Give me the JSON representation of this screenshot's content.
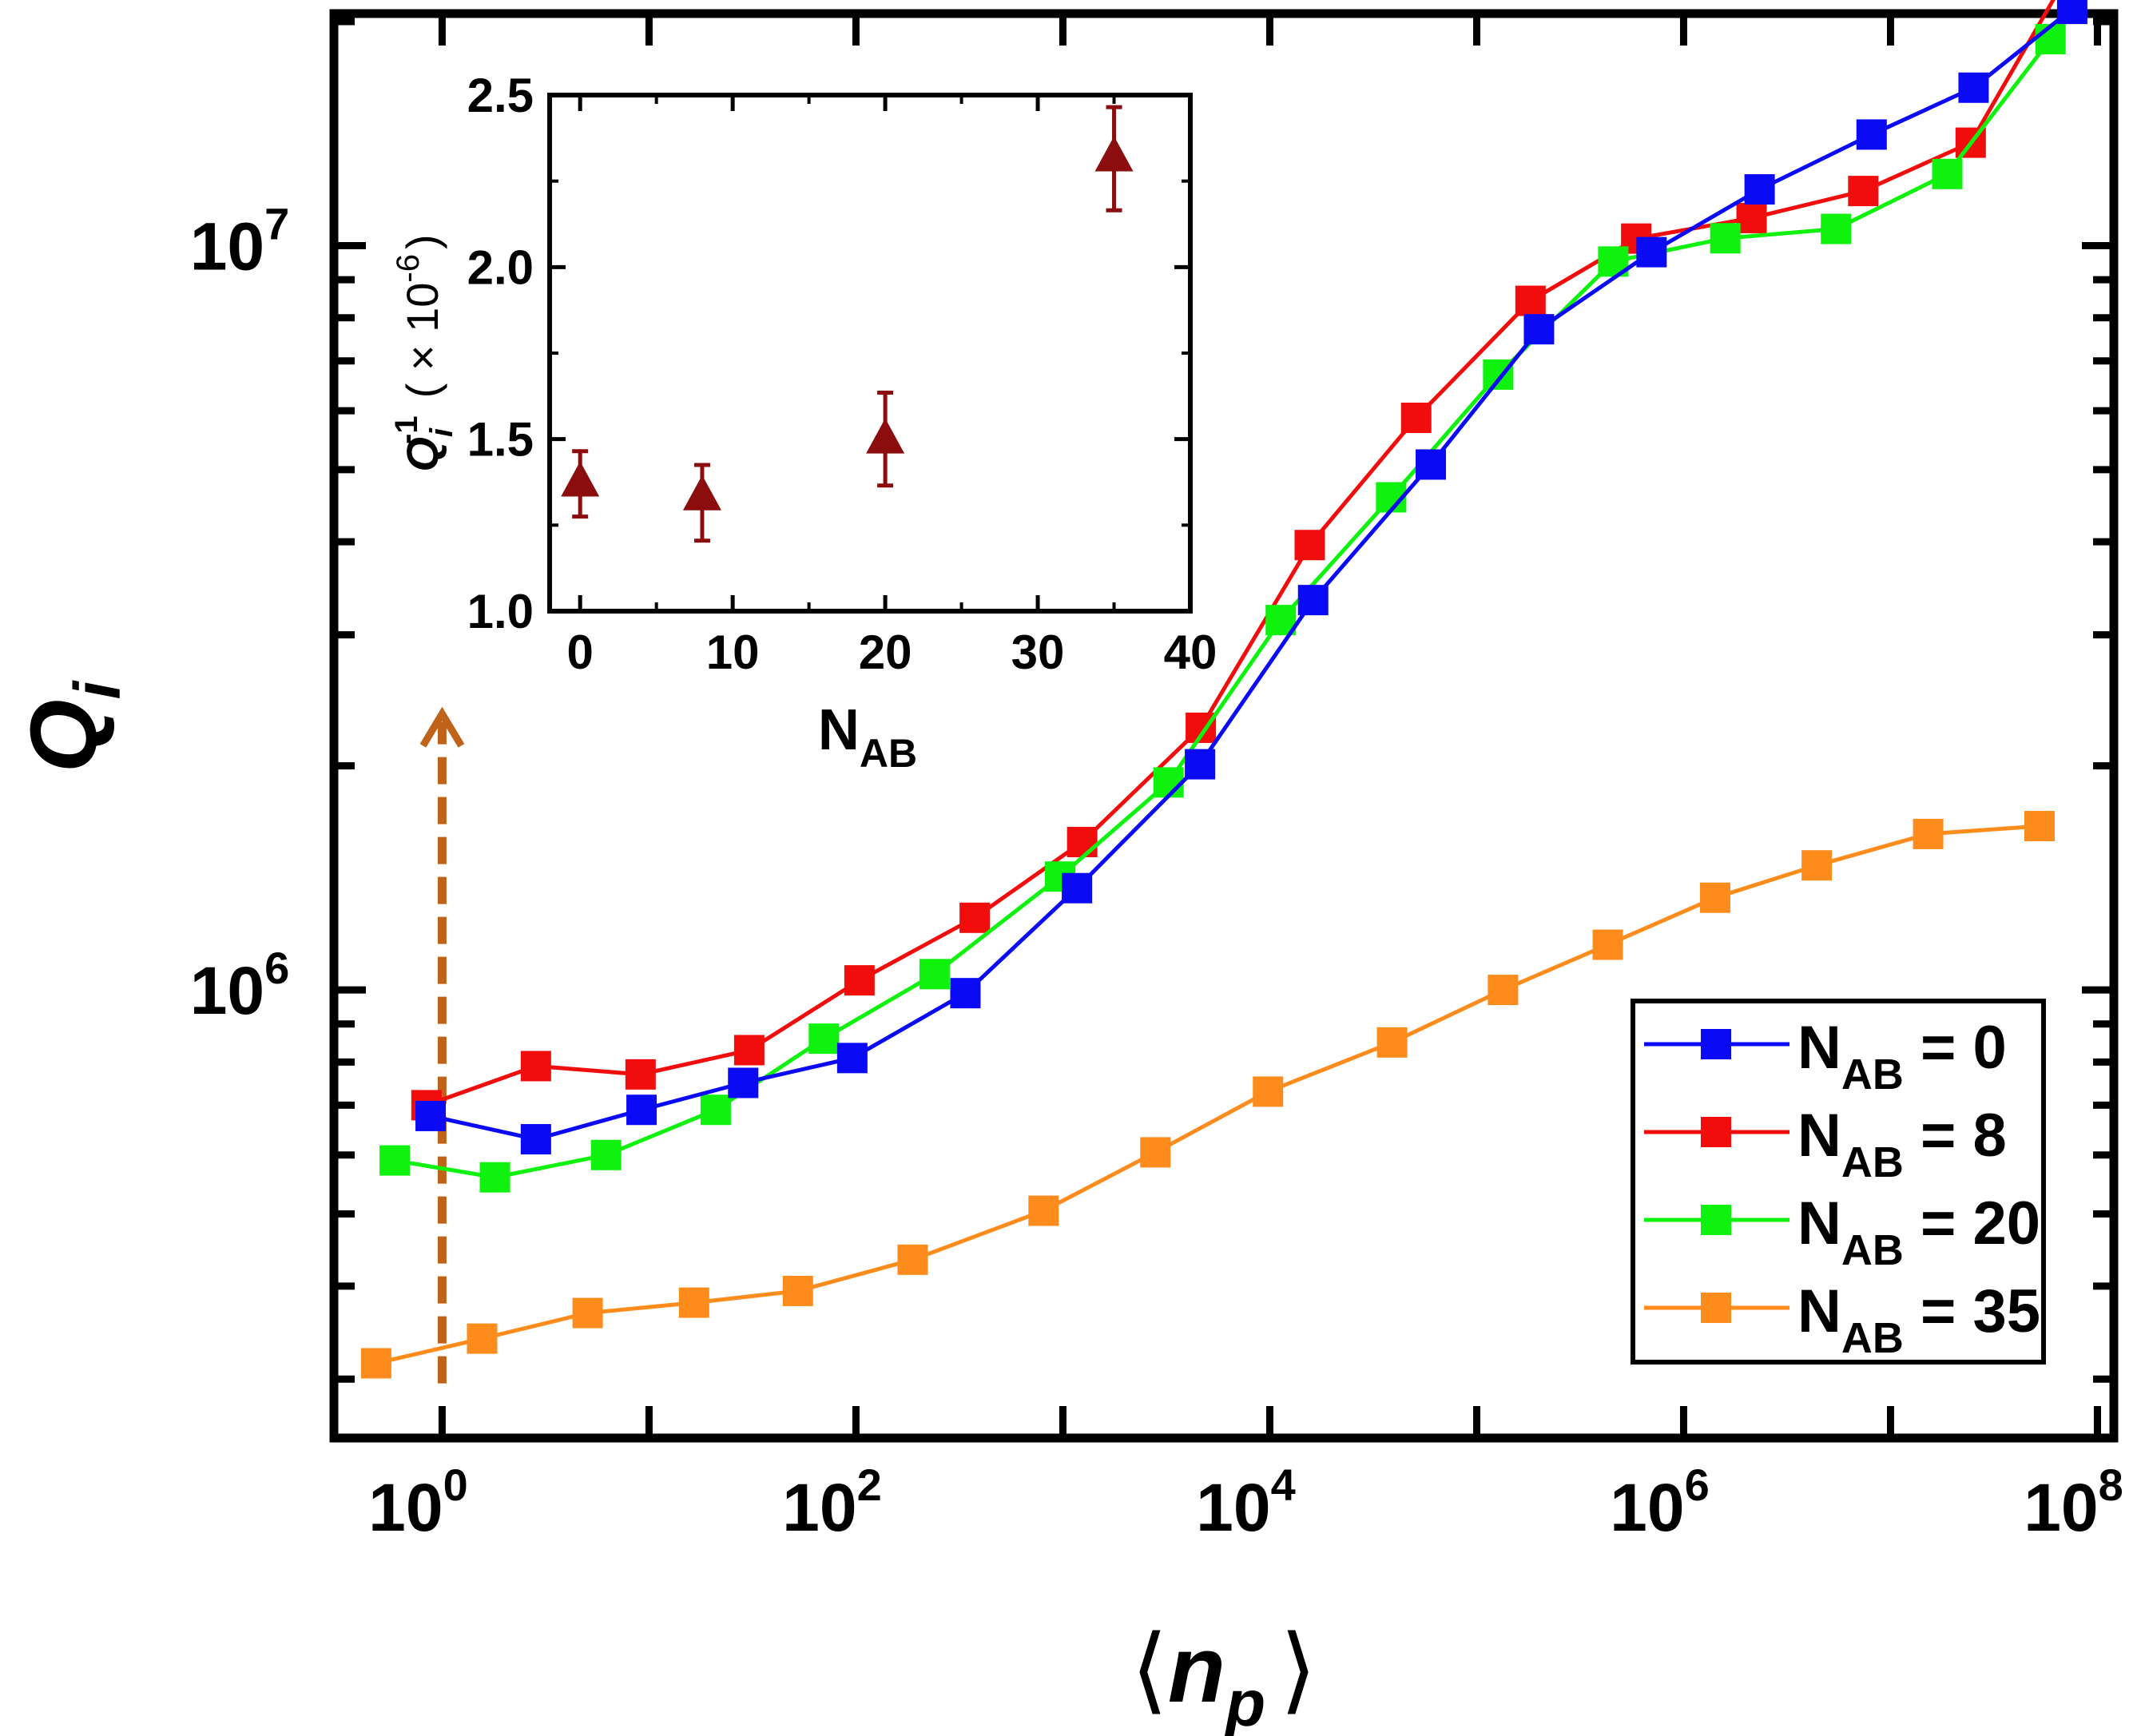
{
  "chart_data": [
    {
      "type": "line",
      "title": "",
      "xlabel": "⟨n_p⟩",
      "ylabel": "Q_i",
      "xscale": "log",
      "yscale": "log",
      "xlim": [
        0.3,
        120000000.0
      ],
      "ylim": [
        250000.0,
        20500000.0
      ],
      "xticks": [
        {
          "value": 1,
          "label": "10",
          "exp": "0"
        },
        {
          "value": 100,
          "label": "10",
          "exp": "2"
        },
        {
          "value": 10000,
          "label": "10",
          "exp": "4"
        },
        {
          "value": 1000000,
          "label": "10",
          "exp": "6"
        },
        {
          "value": 100000000,
          "label": "10",
          "exp": "8"
        }
      ],
      "yticks": [
        {
          "value": 1000000,
          "label": "10",
          "exp": "6"
        },
        {
          "value": 10000000,
          "label": "10",
          "exp": "7"
        }
      ],
      "legend_position": "bottom-right",
      "grid": false,
      "series": [
        {
          "name": "N_AB = 0",
          "legend_base": "N",
          "legend_sub": "AB",
          "legend_suffix": " = 0",
          "color": "#0a0af5",
          "x": [
            0.88,
            2.84,
            9.2,
            28.5,
            96,
            338,
            1170,
            4600,
            16200,
            60000,
            200000,
            700000,
            2330000,
            8100000,
            25200000,
            75500000
          ],
          "y": [
            677000,
            630000,
            690000,
            750000,
            810000,
            990000,
            1370000,
            2010000,
            3340000,
            5080000,
            7720000,
            9800000,
            11900000,
            14100000,
            16300000,
            20800000
          ]
        },
        {
          "name": "N_AB = 8",
          "legend_base": "N",
          "legend_sub": "AB",
          "legend_suffix": " = 8",
          "color": "#f20d0d",
          "x": [
            0.84,
            2.84,
            9.1,
            30.5,
            104,
            375,
            1240,
            4640,
            15600,
            51000,
            182000,
            590000,
            2130000,
            7380000,
            24400000,
            69500000
          ],
          "y": [
            700000,
            790000,
            770000,
            830000,
            1030000,
            1250000,
            1580000,
            2250000,
            3960000,
            5870000,
            8430000,
            10220000,
            10890000,
            11840000,
            13750000,
            22750000
          ]
        },
        {
          "name": "N_AB = 20",
          "legend_base": "N",
          "legend_sub": "AB",
          "legend_suffix": " = 20",
          "color": "#0ef20e",
          "x": [
            0.59,
            1.8,
            6.2,
            21,
            70,
            240,
            970,
            3240,
            11300,
            38600,
            127000,
            457000,
            1590000,
            5450000,
            18800000,
            59300000
          ],
          "y": [
            590000,
            560000,
            600000,
            690000,
            860000,
            1050000,
            1420000,
            1900000,
            3140000,
            4590000,
            6710000,
            9520000,
            10230000,
            10530000,
            12480000,
            18940000
          ]
        },
        {
          "name": "N_AB = 35",
          "legend_base": "N",
          "legend_sub": "AB",
          "legend_suffix": " = 35",
          "color": "#fd8c1c",
          "x": [
            0.48,
            1.56,
            5.05,
            16.5,
            52.4,
            188,
            807,
            2800,
            9800,
            39000,
            134000,
            430000,
            1420000,
            4400000,
            15200000,
            52500000
          ],
          "y": [
            315000,
            340000,
            368000,
            380000,
            394000,
            434000,
            505000,
            605000,
            730000,
            850000,
            1000000,
            1150000,
            1330000,
            1470000,
            1620000,
            1660000
          ]
        }
      ],
      "annotation": {
        "type": "arrow",
        "x": 1,
        "y_from": 296000.0,
        "y_to": 2350000.0,
        "color": "#c0631a",
        "style": "dashed"
      }
    },
    {
      "type": "scatter",
      "title": "",
      "xlabel": "N_AB",
      "ylabel": "Q_i^-1 (× 10^-6)",
      "xlim": [
        -2,
        40
      ],
      "ylim": [
        1.0,
        2.5
      ],
      "xticks": [
        0,
        10,
        20,
        30,
        40
      ],
      "yticks": [
        1.0,
        1.5,
        2.0,
        2.5
      ],
      "ytick_labels": [
        "1.0",
        "1.5",
        "2.0",
        "2.5"
      ],
      "grid": false,
      "series": [
        {
          "color": "#8b0d0d",
          "marker": "triangle",
          "x": [
            0,
            8,
            20,
            35
          ],
          "y": [
            1.375,
            1.335,
            1.5,
            2.32
          ],
          "err_low": [
            1.275,
            1.205,
            1.365,
            2.165
          ],
          "err_high": [
            1.465,
            1.425,
            1.635,
            2.465
          ]
        }
      ]
    }
  ],
  "axis_text": {
    "main_ylabel_base": "Q",
    "main_ylabel_sub": "i",
    "main_xlabel_open": "⟨",
    "main_xlabel_base": "n",
    "main_xlabel_sub": "p",
    "main_xlabel_close": "⟩",
    "inset_xlabel_base": "N",
    "inset_xlabel_sub": "AB",
    "inset_ylabel_base": "Q",
    "inset_ylabel_sub": "i",
    "inset_ylabel_sup": "-1",
    "inset_ylabel_unit": "( × 10",
    "inset_ylabel_unit_sup": "-6",
    "inset_ylabel_close": ")"
  }
}
